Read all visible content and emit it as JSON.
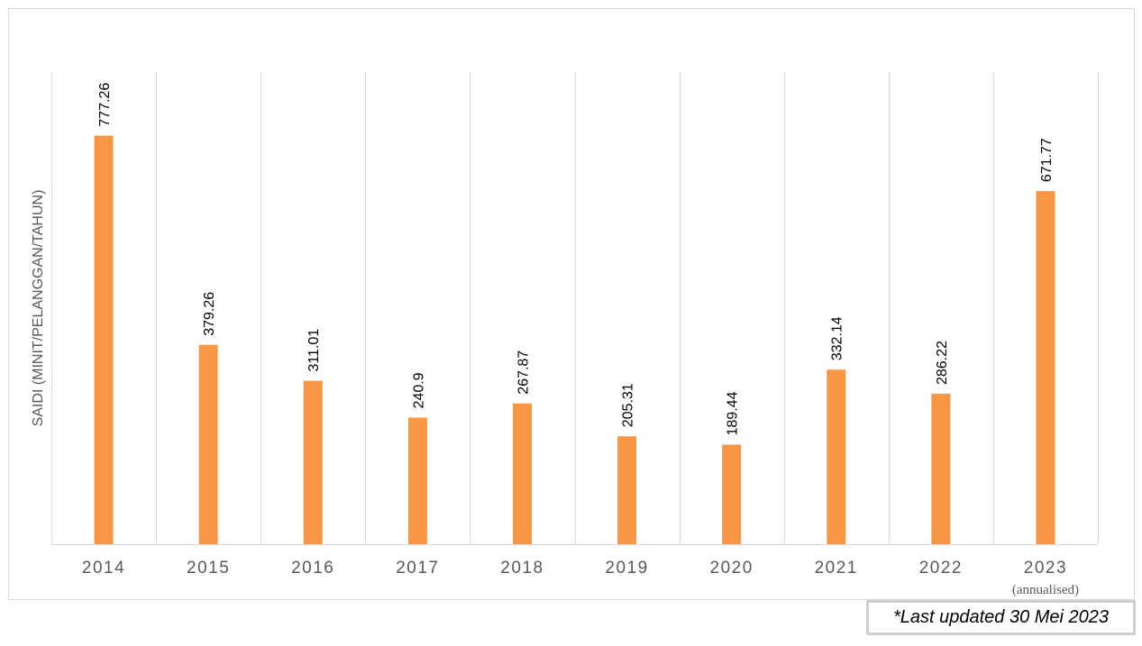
{
  "chart_data": {
    "type": "bar",
    "ylabel": "SAIDI (MINIT/PELANGGAN/TAHUN)",
    "categories": [
      "2014",
      "2015",
      "2016",
      "2017",
      "2018",
      "2019",
      "2020",
      "2021",
      "2022",
      "2023"
    ],
    "category_sublabels": [
      "",
      "",
      "",
      "",
      "",
      "",
      "",
      "",
      "",
      "(annualised)"
    ],
    "values": [
      777.26,
      379.26,
      311.01,
      240.9,
      267.87,
      205.31,
      189.44,
      332.14,
      286.22,
      671.77
    ],
    "value_labels": [
      "777.26",
      "379.26",
      "311.01",
      "240.9",
      "267.87",
      "205.31",
      "189.44",
      "332.14",
      "286.22",
      "671.77"
    ],
    "ylim": [
      0,
      900
    ],
    "grid": "vertical",
    "bar_color": "#F79646",
    "legend": "none"
  },
  "note": "*Last updated 30 Mei 2023"
}
